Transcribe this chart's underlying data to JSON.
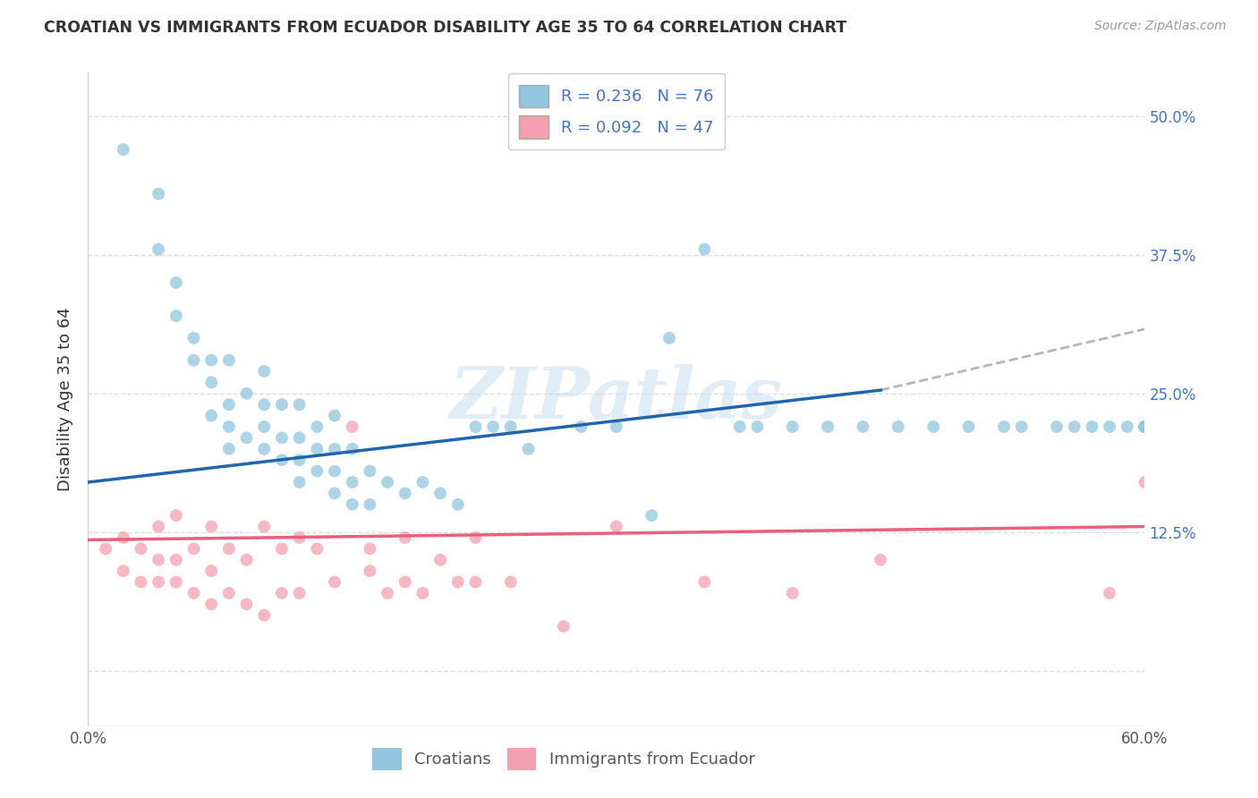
{
  "title": "CROATIAN VS IMMIGRANTS FROM ECUADOR DISABILITY AGE 35 TO 64 CORRELATION CHART",
  "source": "Source: ZipAtlas.com",
  "ylabel": "Disability Age 35 to 64",
  "xlim": [
    0.0,
    0.6
  ],
  "ylim": [
    -0.05,
    0.54
  ],
  "xtick_positions": [
    0.0,
    0.1,
    0.2,
    0.3,
    0.4,
    0.5,
    0.6
  ],
  "xticklabels": [
    "0.0%",
    "",
    "",
    "",
    "",
    "",
    "60.0%"
  ],
  "ytick_positions": [
    0.0,
    0.125,
    0.25,
    0.375,
    0.5
  ],
  "yticklabels_right": [
    "",
    "12.5%",
    "25.0%",
    "37.5%",
    "50.0%"
  ],
  "legend_r1": "R = 0.236",
  "legend_n1": "N = 76",
  "legend_r2": "R = 0.092",
  "legend_n2": "N = 47",
  "color_blue": "#92c5de",
  "color_pink": "#f4a0b0",
  "line_blue": "#2166ac",
  "line_pink": "#e8607a",
  "line_dash_color": "#aaaaaa",
  "watermark_text": "ZIPatlas",
  "watermark_color": "#c8ddf0",
  "bg_color": "#ffffff",
  "grid_color": "#dddddd",
  "title_color": "#333333",
  "source_color": "#999999",
  "tick_color_right": "#4472c4",
  "legend_text_color": "#4472c4",
  "bottom_legend_color": "#555555",
  "blue_line_x": [
    0.0,
    0.45
  ],
  "blue_line_y": [
    0.17,
    0.253
  ],
  "dash_line_x": [
    0.45,
    0.6
  ],
  "dash_line_y": [
    0.253,
    0.308
  ],
  "pink_line_x": [
    0.0,
    0.6
  ],
  "pink_line_y": [
    0.118,
    0.13
  ],
  "blue_x": [
    0.02,
    0.04,
    0.04,
    0.05,
    0.05,
    0.06,
    0.06,
    0.07,
    0.07,
    0.07,
    0.08,
    0.08,
    0.08,
    0.08,
    0.09,
    0.09,
    0.1,
    0.1,
    0.1,
    0.1,
    0.11,
    0.11,
    0.11,
    0.12,
    0.12,
    0.12,
    0.12,
    0.13,
    0.13,
    0.13,
    0.14,
    0.14,
    0.14,
    0.14,
    0.15,
    0.15,
    0.15,
    0.16,
    0.16,
    0.17,
    0.18,
    0.19,
    0.2,
    0.21,
    0.22,
    0.23,
    0.24,
    0.25,
    0.28,
    0.3,
    0.32,
    0.33,
    0.35,
    0.37,
    0.38,
    0.4,
    0.42,
    0.44,
    0.46,
    0.48,
    0.5,
    0.52,
    0.53,
    0.55,
    0.56,
    0.57,
    0.58,
    0.59,
    0.6,
    0.6,
    0.6,
    0.6,
    0.6,
    0.6,
    0.6,
    0.6
  ],
  "blue_y": [
    0.47,
    0.38,
    0.43,
    0.32,
    0.35,
    0.28,
    0.3,
    0.23,
    0.26,
    0.28,
    0.2,
    0.22,
    0.24,
    0.28,
    0.21,
    0.25,
    0.2,
    0.22,
    0.24,
    0.27,
    0.19,
    0.21,
    0.24,
    0.17,
    0.19,
    0.21,
    0.24,
    0.18,
    0.2,
    0.22,
    0.16,
    0.18,
    0.2,
    0.23,
    0.15,
    0.17,
    0.2,
    0.15,
    0.18,
    0.17,
    0.16,
    0.17,
    0.16,
    0.15,
    0.22,
    0.22,
    0.22,
    0.2,
    0.22,
    0.22,
    0.14,
    0.3,
    0.38,
    0.22,
    0.22,
    0.22,
    0.22,
    0.22,
    0.22,
    0.22,
    0.22,
    0.22,
    0.22,
    0.22,
    0.22,
    0.22,
    0.22,
    0.22,
    0.22,
    0.22,
    0.22,
    0.22,
    0.22,
    0.22,
    0.22,
    0.22
  ],
  "pink_x": [
    0.01,
    0.02,
    0.02,
    0.03,
    0.03,
    0.04,
    0.04,
    0.04,
    0.05,
    0.05,
    0.05,
    0.06,
    0.06,
    0.07,
    0.07,
    0.07,
    0.08,
    0.08,
    0.09,
    0.09,
    0.1,
    0.1,
    0.11,
    0.11,
    0.12,
    0.12,
    0.13,
    0.14,
    0.15,
    0.16,
    0.16,
    0.17,
    0.18,
    0.18,
    0.19,
    0.2,
    0.21,
    0.22,
    0.22,
    0.24,
    0.27,
    0.3,
    0.35,
    0.4,
    0.45,
    0.58,
    0.6
  ],
  "pink_y": [
    0.11,
    0.09,
    0.12,
    0.08,
    0.11,
    0.08,
    0.1,
    0.13,
    0.08,
    0.1,
    0.14,
    0.07,
    0.11,
    0.06,
    0.09,
    0.13,
    0.07,
    0.11,
    0.06,
    0.1,
    0.05,
    0.13,
    0.07,
    0.11,
    0.07,
    0.12,
    0.11,
    0.08,
    0.22,
    0.09,
    0.11,
    0.07,
    0.08,
    0.12,
    0.07,
    0.1,
    0.08,
    0.08,
    0.12,
    0.08,
    0.04,
    0.13,
    0.08,
    0.07,
    0.1,
    0.07,
    0.17
  ]
}
